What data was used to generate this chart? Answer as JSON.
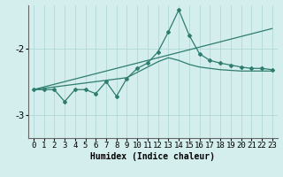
{
  "xlabel": "Humidex (Indice chaleur)",
  "x_values": [
    0,
    1,
    2,
    3,
    4,
    5,
    6,
    7,
    8,
    9,
    10,
    11,
    12,
    13,
    14,
    15,
    16,
    17,
    18,
    19,
    20,
    21,
    22,
    23
  ],
  "jagged_y": [
    -2.62,
    -2.62,
    -2.62,
    -2.8,
    -2.62,
    -2.62,
    -2.68,
    -2.5,
    -2.72,
    -2.45,
    -2.3,
    -2.22,
    -2.05,
    -1.75,
    -1.42,
    -1.8,
    -2.08,
    -2.18,
    -2.22,
    -2.25,
    -2.28,
    -2.3,
    -2.3,
    -2.32
  ],
  "linear1_y": [
    -2.62,
    -2.58,
    -2.54,
    -2.5,
    -2.46,
    -2.42,
    -2.38,
    -2.34,
    -2.3,
    -2.26,
    -2.22,
    -2.18,
    -2.14,
    -2.1,
    -2.06,
    -2.02,
    -1.98,
    -1.94,
    -1.9,
    -1.86,
    -1.82,
    -1.78,
    -1.74,
    -1.7
  ],
  "linear2_y": [
    -2.62,
    -2.6,
    -2.58,
    -2.56,
    -2.54,
    -2.52,
    -2.5,
    -2.48,
    -2.46,
    -2.44,
    -2.36,
    -2.28,
    -2.2,
    -2.14,
    -2.18,
    -2.24,
    -2.28,
    -2.3,
    -2.32,
    -2.33,
    -2.34,
    -2.34,
    -2.34,
    -2.34
  ],
  "color": "#2e7d6e",
  "bg_color": "#d4eeee",
  "grid_color": "#aad4d4",
  "ylim": [
    -3.35,
    -1.35
  ],
  "xlim": [
    -0.5,
    23.5
  ],
  "yticks": [
    -3,
    -2
  ],
  "xticks": [
    0,
    1,
    2,
    3,
    4,
    5,
    6,
    7,
    8,
    9,
    10,
    11,
    12,
    13,
    14,
    15,
    16,
    17,
    18,
    19,
    20,
    21,
    22,
    23
  ],
  "xlabel_fontsize": 7,
  "tick_fontsize": 6.5
}
